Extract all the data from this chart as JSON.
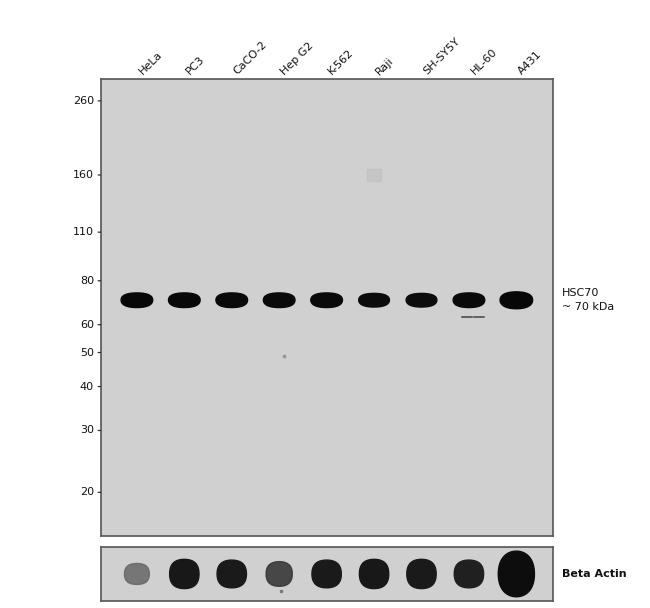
{
  "fig_width": 6.5,
  "fig_height": 6.08,
  "panel_bg": "#d0d0d0",
  "border_color": "#555555",
  "lane_labels": [
    "HeLa",
    "PC3",
    "CaCO-2",
    "Hep G2",
    "K-562",
    "Raji",
    "SH-SY5Y",
    "HL-60",
    "A431"
  ],
  "mw_markers": [
    260,
    160,
    110,
    80,
    60,
    50,
    40,
    30,
    20
  ],
  "annotation_hsc70": "HSC70\n~ 70 kDa",
  "annotation_actin": "Beta Actin",
  "band_color": "#0a0a0a",
  "main_band_mw": 70,
  "fig_bg": "#ffffff"
}
